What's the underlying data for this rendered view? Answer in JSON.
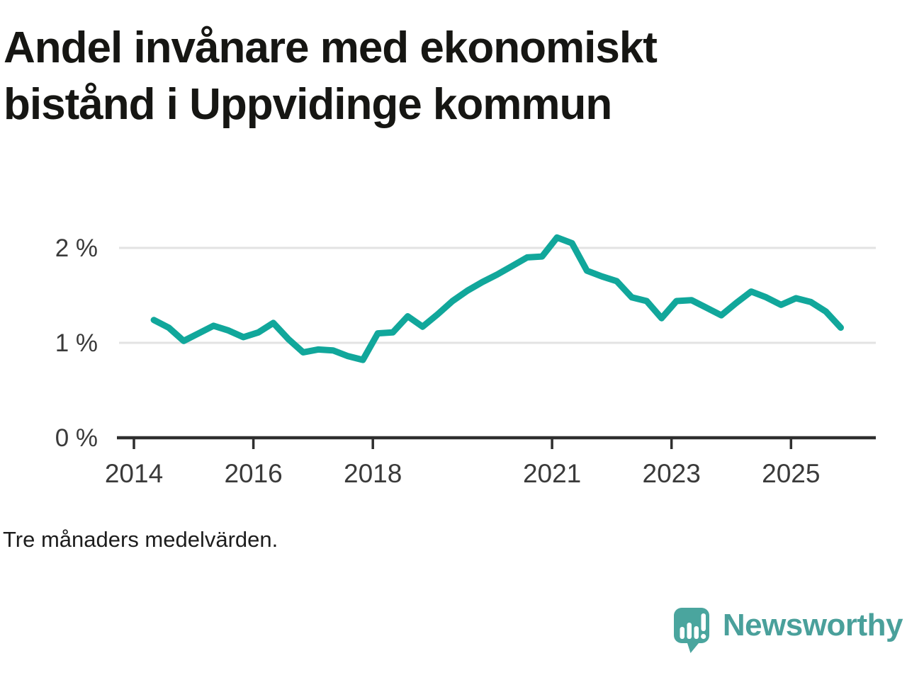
{
  "title": {
    "full": "Andel invånare med ekonomiskt bistånd i Uppvidinge kommun",
    "line1": "Andel invånare med ekonomiskt",
    "line2": "bistånd i Uppvidinge kommun"
  },
  "caption": "Tre månaders medelvärden.",
  "branding": {
    "name": "Newsworthy",
    "icon": "newsworthy-speech-bubble-bar-chart-icon",
    "icon_color": "#4aa59e",
    "text_color": "#4aa09b"
  },
  "colors": {
    "line": "#11a79b",
    "grid": "#e3e3e3",
    "axis": "#2f2f2f",
    "tick_label": "#3a3a3a"
  },
  "chart_data": {
    "type": "line",
    "title": "Andel invånare med ekonomiskt bistånd i Uppvidinge kommun",
    "subtitle": "Tre månaders medelvärden.",
    "unit": "%",
    "xlabel": "",
    "ylabel": "",
    "grid": "horizontal",
    "legend": "none",
    "xlim": [
      2013.7,
      2026.45
    ],
    "ylim": [
      0,
      2.33
    ],
    "x_ticks": [
      {
        "value": 2014,
        "label": "2014"
      },
      {
        "value": 2016,
        "label": "2016"
      },
      {
        "value": 2018,
        "label": "2018"
      },
      {
        "value": 2021,
        "label": "2021"
      },
      {
        "value": 2023,
        "label": "2023"
      },
      {
        "value": 2025,
        "label": "2025"
      }
    ],
    "y_ticks": [
      {
        "value": 0,
        "label": "0 %"
      },
      {
        "value": 1,
        "label": "1 %"
      },
      {
        "value": 2,
        "label": "2 %"
      }
    ],
    "x_start": 2014.3333,
    "x_step": 0.25,
    "x_period": "quarterly (three-month averages)",
    "series": [
      {
        "name": "Andel invånare med ekonomiskt bistånd",
        "color": "#11a79b",
        "values": [
          1.24,
          1.16,
          1.02,
          1.1,
          1.18,
          1.13,
          1.06,
          1.11,
          1.21,
          1.04,
          0.9,
          0.93,
          0.92,
          0.86,
          0.82,
          1.1,
          1.11,
          1.28,
          1.17,
          1.3,
          1.44,
          1.55,
          1.64,
          1.72,
          1.81,
          1.9,
          1.91,
          2.11,
          2.05,
          1.76,
          1.7,
          1.65,
          1.48,
          1.44,
          1.26,
          1.44,
          1.45,
          1.37,
          1.29,
          1.42,
          1.54,
          1.48,
          1.4,
          1.47,
          1.43,
          1.33,
          1.16
        ]
      }
    ]
  }
}
